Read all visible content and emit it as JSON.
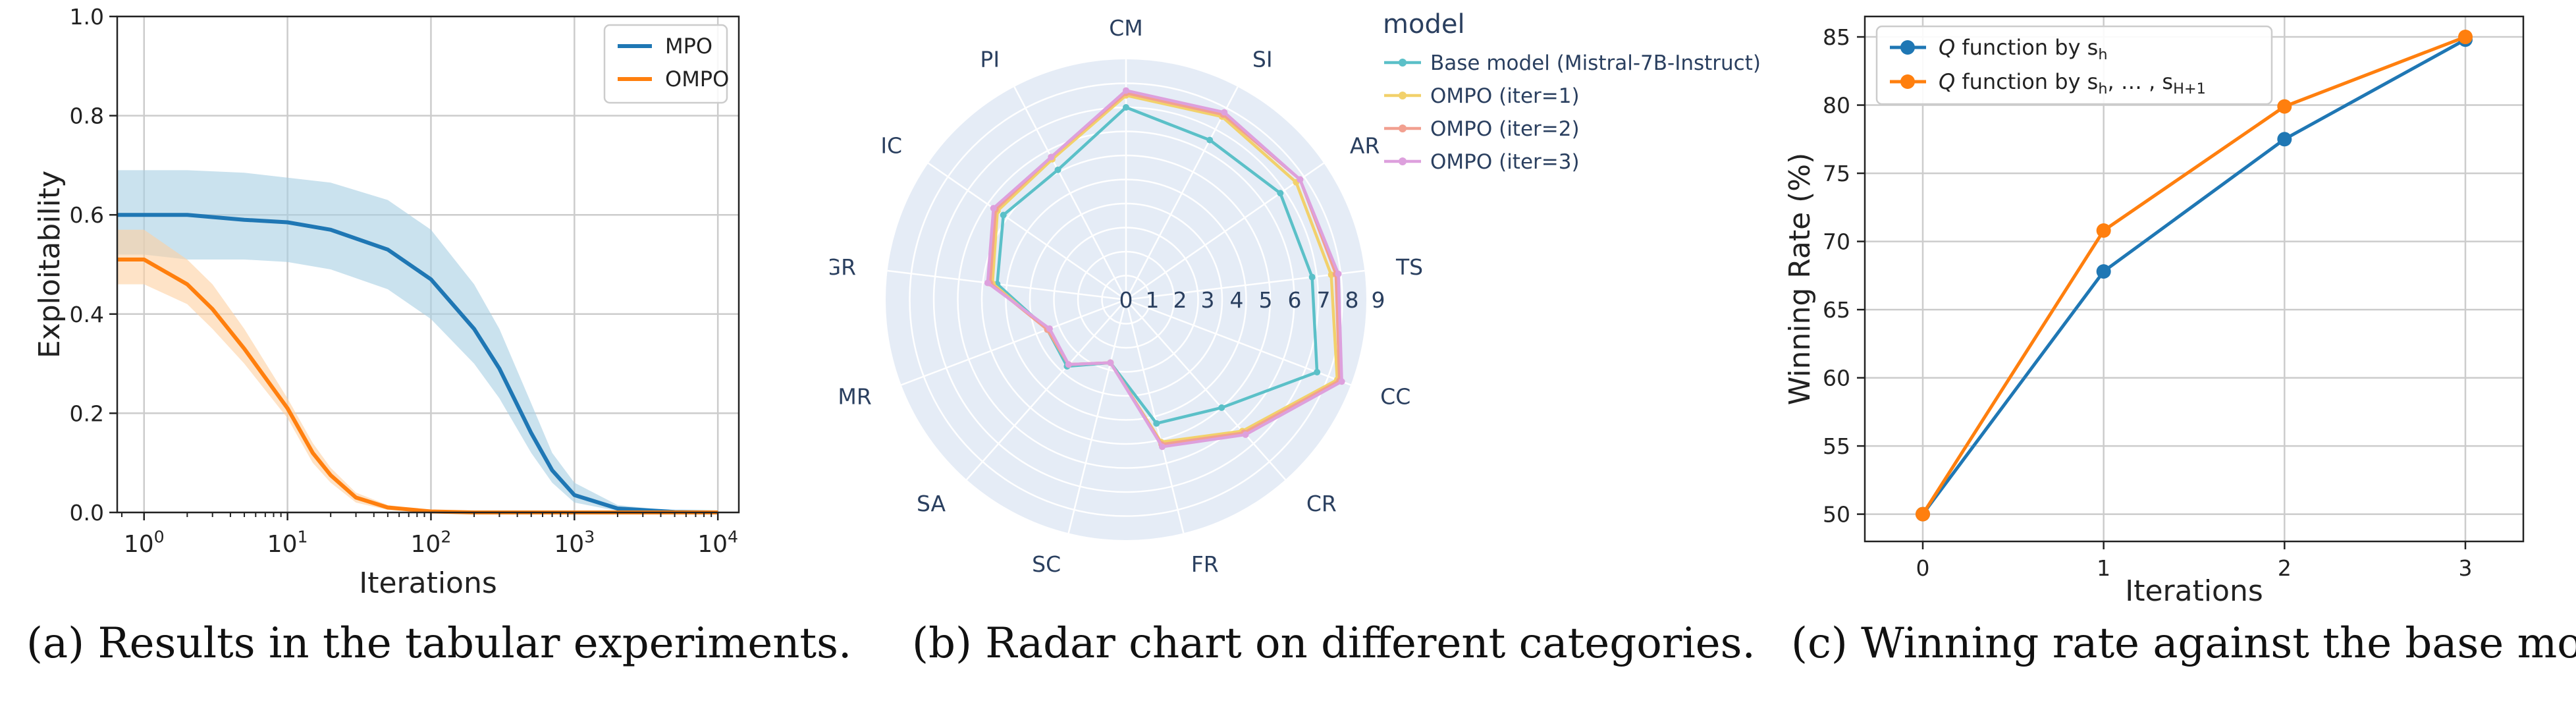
{
  "chart_data": [
    {
      "type": "line",
      "xlabel": "Iterations",
      "ylabel": "Exploitability",
      "xscale": "log",
      "xlim": [
        0.65,
        14000
      ],
      "ylim": [
        0,
        1.0
      ],
      "x_tick_labels": [
        "10^0",
        "10^1",
        "10^2",
        "10^3",
        "10^4"
      ],
      "y_tick_labels": [
        "0.0",
        "0.2",
        "0.4",
        "0.6",
        "0.8",
        "1.0"
      ],
      "grid": true,
      "legend_position": "top-right",
      "shaded_bands": true,
      "series": [
        {
          "name": "MPO",
          "color": "#1f77b4",
          "band_color": "#a6cee3",
          "x": [
            0.65,
            1,
            2,
            5,
            10,
            20,
            50,
            100,
            200,
            300,
            500,
            700,
            1000,
            2000,
            5000,
            10000
          ],
          "y": [
            0.6,
            0.6,
            0.6,
            0.59,
            0.585,
            0.57,
            0.53,
            0.47,
            0.37,
            0.29,
            0.16,
            0.085,
            0.035,
            0.008,
            0.001,
            0.0
          ],
          "lower": [
            0.52,
            0.52,
            0.51,
            0.51,
            0.505,
            0.49,
            0.45,
            0.39,
            0.3,
            0.23,
            0.12,
            0.06,
            0.02,
            0.003,
            0.0,
            0.0
          ],
          "upper": [
            0.69,
            0.69,
            0.69,
            0.685,
            0.675,
            0.665,
            0.63,
            0.57,
            0.46,
            0.37,
            0.22,
            0.12,
            0.06,
            0.015,
            0.003,
            0.0
          ]
        },
        {
          "name": "OMPO",
          "color": "#ff7f0e",
          "band_color": "#fdd0a2",
          "x": [
            0.65,
            1,
            2,
            3,
            5,
            10,
            15,
            20,
            30,
            50,
            100,
            200,
            10000
          ],
          "y": [
            0.51,
            0.51,
            0.46,
            0.41,
            0.33,
            0.21,
            0.12,
            0.075,
            0.03,
            0.01,
            0.002,
            0.0,
            0.0
          ],
          "lower": [
            0.46,
            0.46,
            0.42,
            0.37,
            0.3,
            0.19,
            0.1,
            0.06,
            0.02,
            0.005,
            0.0,
            0.0,
            0.0
          ],
          "upper": [
            0.57,
            0.57,
            0.51,
            0.46,
            0.37,
            0.23,
            0.14,
            0.09,
            0.04,
            0.015,
            0.004,
            0.0,
            0.0
          ]
        }
      ]
    },
    {
      "type": "radar",
      "legend_title": "model",
      "legend_position": "top-right",
      "categories": [
        "CM",
        "SI",
        "AR",
        "TS",
        "CC",
        "CR",
        "FR",
        "SC",
        "SA",
        "MR",
        "GR",
        "IC",
        "PI"
      ],
      "radial_ticks": [
        "0",
        "1",
        "2",
        "3",
        "4",
        "5",
        "6",
        "7",
        "8",
        "9"
      ],
      "rmax": 10,
      "series": [
        {
          "name": "Base model (Mistral-7B-Instruct)",
          "color": "#5bc0c8",
          "values": [
            8.0,
            7.5,
            7.8,
            7.8,
            8.5,
            6.0,
            5.3,
            2.7,
            3.7,
            3.5,
            5.4,
            6.2,
            6.1
          ]
        },
        {
          "name": "OMPO (iter=1)",
          "color": "#f2d16b",
          "values": [
            8.5,
            8.6,
            8.6,
            8.6,
            9.4,
            7.3,
            6.1,
            2.7,
            3.6,
            3.5,
            5.6,
            6.5,
            6.6
          ]
        },
        {
          "name": "OMPO (iter=2)",
          "color": "#f2a090",
          "values": [
            8.6,
            8.7,
            8.8,
            8.8,
            9.5,
            7.4,
            6.2,
            2.7,
            3.6,
            3.5,
            5.7,
            6.6,
            6.7
          ]
        },
        {
          "name": "OMPO (iter=3)",
          "color": "#dda0dd",
          "values": [
            8.7,
            8.8,
            8.8,
            8.9,
            9.6,
            7.5,
            6.3,
            2.7,
            3.6,
            3.4,
            5.8,
            6.7,
            6.7
          ]
        }
      ]
    },
    {
      "type": "line",
      "xlabel": "Iterations",
      "ylabel": "Winning Rate (%)",
      "categories": [
        "0",
        "1",
        "2",
        "3"
      ],
      "ylim": [
        48,
        86.5
      ],
      "y_tick_labels": [
        "50",
        "55",
        "60",
        "65",
        "70",
        "75",
        "80",
        "85"
      ],
      "grid": true,
      "legend_position": "top-left",
      "series": [
        {
          "name_prefix": "Q",
          "name_suffix": " function by s_h",
          "color": "#1f77b4",
          "values": [
            50.0,
            67.8,
            77.5,
            84.8
          ]
        },
        {
          "name_prefix": "Q",
          "name_suffix": " function by s_h, … , s_{H+1}",
          "color": "#ff7f0e",
          "values": [
            50.0,
            70.8,
            79.9,
            85.0
          ]
        }
      ]
    }
  ],
  "captions": {
    "a": "(a)  Results in the tabular experiments.",
    "b": "(b)  Radar chart on different categories.",
    "c": "(c)  Winning rate against the base model."
  }
}
